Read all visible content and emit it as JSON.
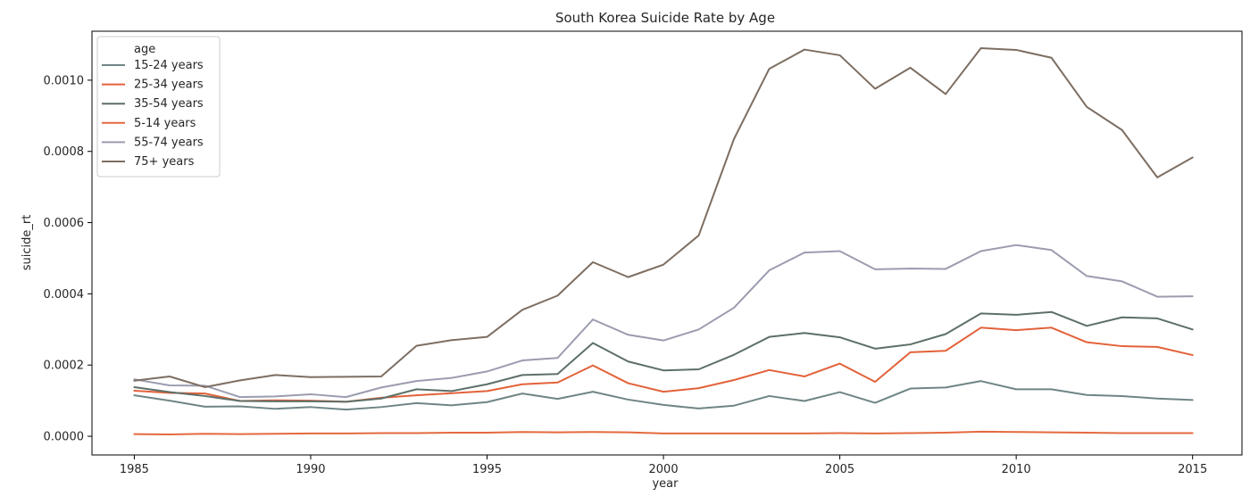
{
  "chart_data": {
    "type": "line",
    "title": "South Korea Suicide Rate by Age",
    "xlabel": "year",
    "ylabel": "suicide_rt",
    "xlim": [
      1983.8,
      2016.4
    ],
    "ylim": [
      -5.25e-05,
      0.0011375
    ],
    "x_ticks": [
      1985,
      1990,
      1995,
      2000,
      2005,
      2010,
      2015
    ],
    "y_ticks": [
      0.0,
      0.0002,
      0.0004,
      0.0006,
      0.0008,
      0.001
    ],
    "y_tick_labels": [
      "0.0000",
      "0.0002",
      "0.0004",
      "0.0006",
      "0.0008",
      "0.0010"
    ],
    "x": [
      1985,
      1986,
      1987,
      1988,
      1989,
      1990,
      1991,
      1992,
      1993,
      1994,
      1995,
      1996,
      1997,
      1998,
      1999,
      2000,
      2001,
      2002,
      2003,
      2004,
      2005,
      2006,
      2007,
      2008,
      2009,
      2010,
      2011,
      2012,
      2013,
      2014,
      2015
    ],
    "legend": {
      "title": "age",
      "placement": "upper-left"
    },
    "grid": false,
    "series": [
      {
        "name": "15-24 years",
        "color": "#6f8585",
        "values": [
          0.000115,
          0.0001,
          8.3e-05,
          8.4e-05,
          7.7e-05,
          8.2e-05,
          7.5e-05,
          8.2e-05,
          9.3e-05,
          8.7e-05,
          9.6e-05,
          0.00012,
          0.000105,
          0.000125,
          0.000103,
          8.8e-05,
          7.8e-05,
          8.6e-05,
          0.000113,
          9.9e-05,
          0.000124,
          9.4e-05,
          0.000134,
          0.000137,
          0.000155,
          0.000132,
          0.000132,
          0.000116,
          0.000113,
          0.000106,
          0.000102
        ]
      },
      {
        "name": "25-34 years",
        "color": "#e2623a",
        "values": [
          0.000128,
          0.000122,
          0.00012,
          9.9e-05,
          0.000101,
          0.0001,
          9.7e-05,
          0.000108,
          0.000115,
          0.000121,
          0.000127,
          0.000146,
          0.000151,
          0.000199,
          0.000149,
          0.000125,
          0.000135,
          0.000158,
          0.000186,
          0.000168,
          0.000204,
          0.000153,
          0.000236,
          0.00024,
          0.000305,
          0.000298,
          0.000305,
          0.000264,
          0.000253,
          0.000251,
          0.000228
        ]
      },
      {
        "name": "35-54 years",
        "color": "#5d6f68",
        "values": [
          0.000138,
          0.000124,
          0.000113,
          9.9e-05,
          9.8e-05,
          9.8e-05,
          9.7e-05,
          0.000106,
          0.000132,
          0.000127,
          0.000146,
          0.000172,
          0.000175,
          0.000262,
          0.00021,
          0.000185,
          0.000188,
          0.000229,
          0.000279,
          0.00029,
          0.000278,
          0.000246,
          0.000258,
          0.000287,
          0.000345,
          0.000341,
          0.000349,
          0.00031,
          0.000334,
          0.000331,
          0.0003
        ]
      },
      {
        "name": "5-14 years",
        "color": "#e4693f",
        "values": [
          6e-06,
          5e-06,
          7e-06,
          6e-06,
          7e-06,
          8e-06,
          8e-06,
          9e-06,
          9e-06,
          1e-05,
          1e-05,
          1.2e-05,
          1.1e-05,
          1.2e-05,
          1.1e-05,
          8e-06,
          8e-06,
          8e-06,
          8e-06,
          8e-06,
          9e-06,
          8e-06,
          9e-06,
          1e-05,
          1.3e-05,
          1.2e-05,
          1.1e-05,
          1e-05,
          9e-06,
          9e-06,
          9e-06
        ]
      },
      {
        "name": "55-74 years",
        "color": "#9b9caf",
        "values": [
          0.00016,
          0.000143,
          0.000142,
          0.00011,
          0.000112,
          0.000118,
          0.00011,
          0.000137,
          0.000155,
          0.000164,
          0.000182,
          0.000213,
          0.00022,
          0.000328,
          0.000285,
          0.000269,
          0.0003,
          0.000361,
          0.000466,
          0.000516,
          0.00052,
          0.000469,
          0.000471,
          0.00047,
          0.00052,
          0.000537,
          0.000523,
          0.00045,
          0.000435,
          0.000392,
          0.000393
        ]
      },
      {
        "name": "75+ years",
        "color": "#7d6e62",
        "values": [
          0.000156,
          0.000168,
          0.000138,
          0.000157,
          0.000172,
          0.000166,
          0.000167,
          0.000168,
          0.000254,
          0.00027,
          0.000279,
          0.000355,
          0.000395,
          0.000489,
          0.000447,
          0.000482,
          0.000564,
          0.000835,
          0.001032,
          0.001086,
          0.00107,
          0.000976,
          0.001035,
          0.000961,
          0.00109,
          0.001085,
          0.001063,
          0.000925,
          0.00086,
          0.000727,
          0.000783
        ]
      }
    ]
  }
}
